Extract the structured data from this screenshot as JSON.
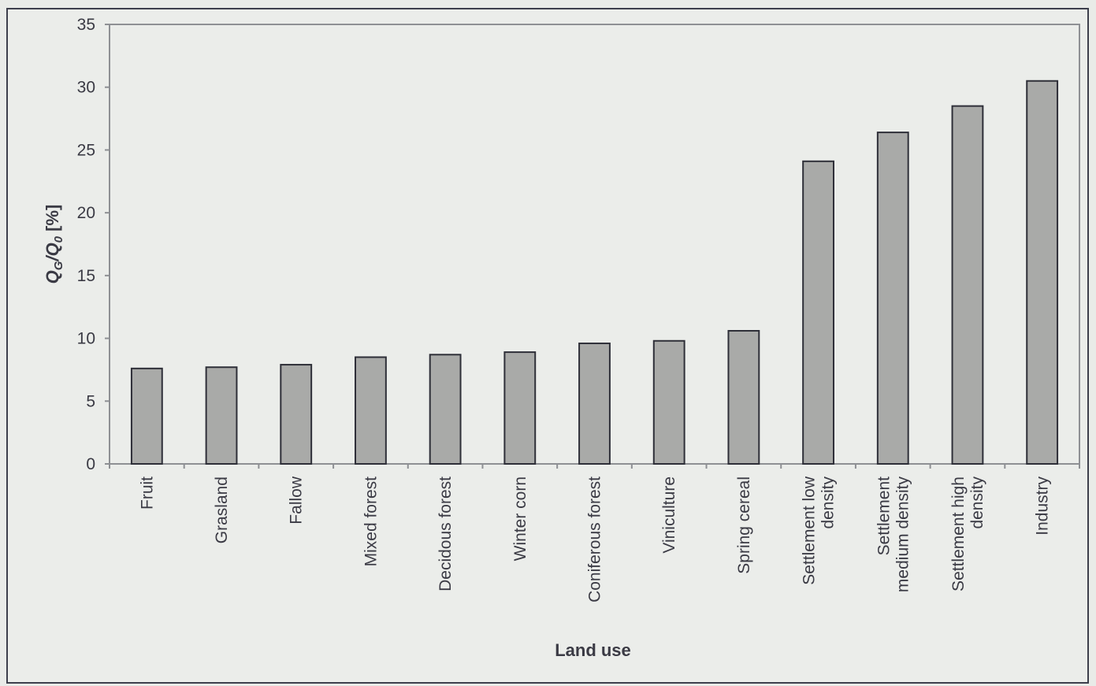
{
  "chart_data": {
    "type": "bar",
    "xlabel": "Land use",
    "ylabel_parts": [
      "Q",
      "G",
      "/Q",
      "0",
      " [%]"
    ],
    "ylim": [
      0,
      35
    ],
    "yticks": [
      0,
      5,
      10,
      15,
      20,
      25,
      30,
      35
    ],
    "grid": false,
    "legend": "none",
    "categories": [
      [
        "Fruit"
      ],
      [
        "Grasland"
      ],
      [
        "Fallow"
      ],
      [
        "Mixed forest"
      ],
      [
        "Decidous forest"
      ],
      [
        "Winter corn"
      ],
      [
        "Coniferous forest"
      ],
      [
        "Viniculture"
      ],
      [
        "Spring cereal"
      ],
      [
        "Settlement low",
        "density"
      ],
      [
        "Settlement",
        "medium density"
      ],
      [
        "Settlement high",
        "density"
      ],
      [
        "Industry"
      ]
    ],
    "values": [
      7.6,
      7.7,
      7.9,
      8.5,
      8.7,
      8.9,
      9.6,
      9.8,
      10.6,
      24.1,
      26.4,
      28.5,
      30.5
    ],
    "colors": {
      "bar_fill": "#a9aaa8",
      "bar_stroke": "#2e2f38",
      "axis": "#8e9094"
    }
  }
}
